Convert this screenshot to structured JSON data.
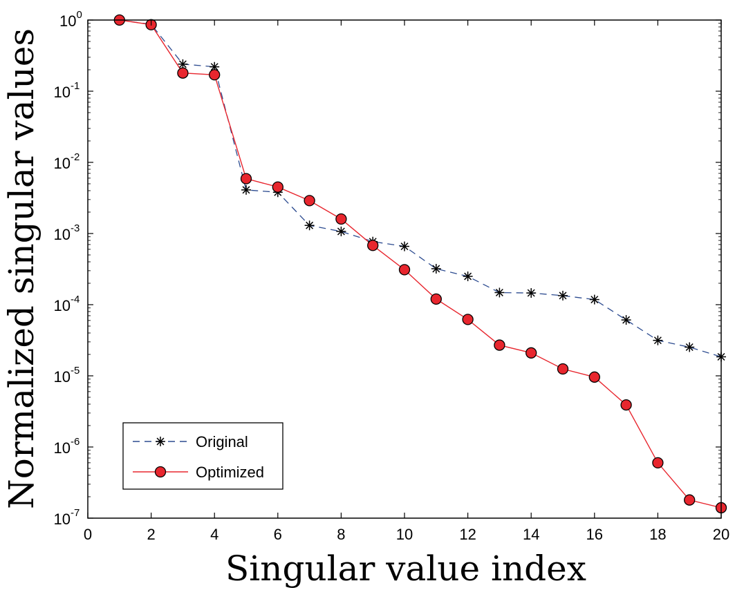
{
  "chart_data": {
    "type": "line",
    "xlabel": "Singular value index",
    "ylabel": "Normalized singular values",
    "xlim": [
      0,
      20
    ],
    "ylim_exponent": [
      -7,
      0
    ],
    "yscale": "log",
    "grid": false,
    "legend_position": "lower-left",
    "xticks": [
      0,
      2,
      4,
      6,
      8,
      10,
      12,
      14,
      16,
      18,
      20
    ],
    "yticks": [
      {
        "base": "10",
        "exp": "-7"
      },
      {
        "base": "10",
        "exp": "-6"
      },
      {
        "base": "10",
        "exp": "-5"
      },
      {
        "base": "10",
        "exp": "-4"
      },
      {
        "base": "10",
        "exp": "-3"
      },
      {
        "base": "10",
        "exp": "-2"
      },
      {
        "base": "10",
        "exp": "-1"
      },
      {
        "base": "10",
        "exp": "0"
      }
    ],
    "x": [
      1,
      2,
      3,
      4,
      5,
      6,
      7,
      8,
      9,
      10,
      11,
      12,
      13,
      14,
      15,
      16,
      17,
      18,
      19,
      20
    ],
    "series": [
      {
        "name": "Original",
        "color": "#2b4a8f",
        "line_style": "dashed",
        "marker": "asterisk",
        "values": [
          1.0,
          0.87,
          0.24,
          0.22,
          0.0041,
          0.0038,
          0.0013,
          0.00107,
          0.00077,
          0.00066,
          0.00032,
          0.00025,
          0.000148,
          0.000146,
          0.000134,
          0.000118,
          6.1e-05,
          3.15e-05,
          2.53e-05,
          1.85e-05
        ]
      },
      {
        "name": "Optimized",
        "color": "#e8262e",
        "line_style": "solid",
        "marker": "circle",
        "values": [
          1.0,
          0.86,
          0.18,
          0.17,
          0.0059,
          0.0045,
          0.0029,
          0.0016,
          0.00068,
          0.00031,
          0.00012,
          6.2e-05,
          2.7e-05,
          2.1e-05,
          1.25e-05,
          9.6e-06,
          3.9e-06,
          6e-07,
          1.8e-07,
          1.4e-07
        ]
      }
    ]
  }
}
